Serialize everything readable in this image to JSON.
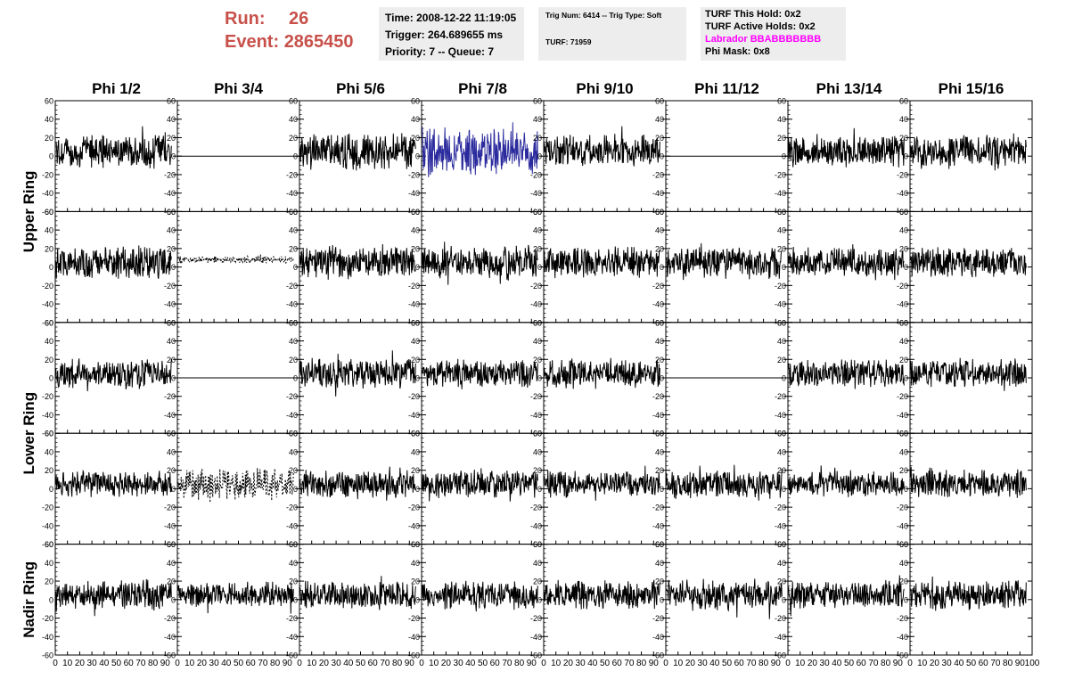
{
  "header": {
    "run_label": "Run:",
    "run_value": "26",
    "event_label": "Event:",
    "event_value": "2865450"
  },
  "info_time": {
    "time": "Time: 2008-12-22 11:19:05",
    "trigger": "Trigger: 264.689655 ms",
    "priority": "Priority: 7 -- Queue: 7"
  },
  "info_trig": {
    "trig": "Trig Num: 6414 -- Trig Type: Soft",
    "turf": "TURF: 71959"
  },
  "info_turf": {
    "this_hold": "TURF This Hold: 0x2",
    "active_holds": "TURF Active Holds: 0x2",
    "labrador": "Labrador BBABBBBBBB",
    "phi_mask": "Phi Mask: 0x8"
  },
  "colors": {
    "header_red": "#c8504a",
    "box_bg": "#ededed",
    "labrador": "#ff00ff",
    "highlight_trace": "#2b2b9e",
    "trace": "#000000"
  },
  "chart_data": {
    "type": "line",
    "columns": [
      "Phi 1/2",
      "Phi 3/4",
      "Phi 5/6",
      "Phi 7/8",
      "Phi 9/10",
      "Phi 11/12",
      "Phi 13/14",
      "Phi 15/16"
    ],
    "row_labels": [
      "Upper Ring",
      "Lower Ring",
      "Nadir Ring"
    ],
    "ylim": [
      -60,
      60
    ],
    "xlim": [
      0,
      100
    ],
    "yticks": [
      -60,
      -40,
      -20,
      0,
      20,
      40,
      60
    ],
    "xticks": [
      0,
      10,
      20,
      30,
      40,
      50,
      60,
      70,
      80,
      90,
      100
    ],
    "highlight": {
      "row": 0,
      "col": 3
    },
    "flat_panels": [
      [
        0,
        1
      ],
      [
        2,
        1
      ],
      [
        2,
        5
      ]
    ],
    "dashed_panels": [
      [
        1,
        1
      ],
      [
        3,
        1
      ]
    ],
    "rows": [
      {
        "amplitude": [
          14,
          0,
          16,
          20,
          14,
          0,
          14,
          14
        ]
      },
      {
        "amplitude": [
          14,
          3,
          14,
          14,
          13,
          14,
          12,
          13
        ]
      },
      {
        "amplitude": [
          12,
          0,
          13,
          12,
          12,
          0,
          12,
          12
        ]
      },
      {
        "amplitude": [
          11,
          14,
          12,
          12,
          11,
          12,
          11,
          12
        ]
      },
      {
        "amplitude": [
          13,
          10,
          12,
          12,
          12,
          13,
          12,
          12
        ]
      }
    ]
  }
}
